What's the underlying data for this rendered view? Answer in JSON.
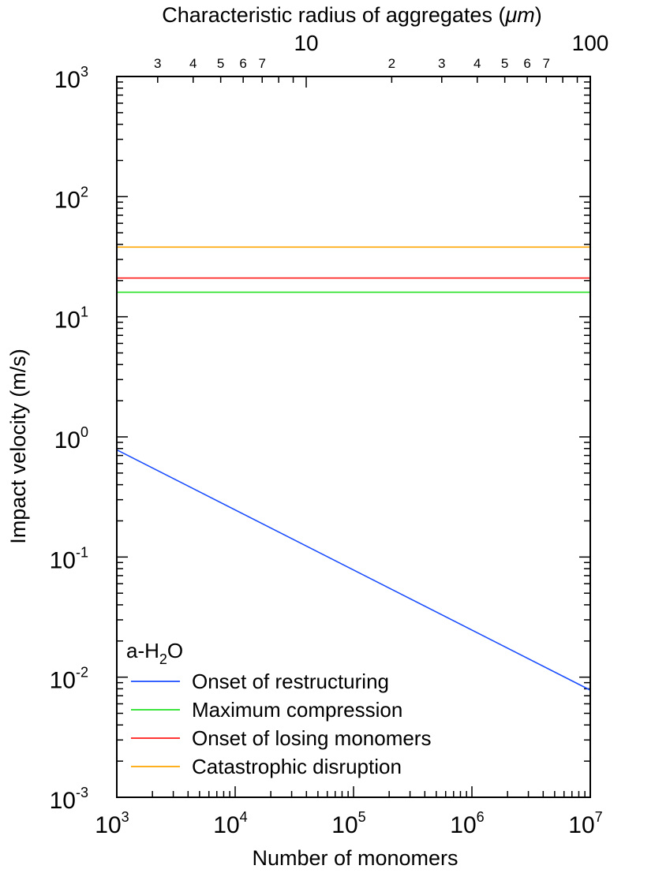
{
  "chart_data": {
    "type": "line",
    "xlabel": "Number of monomers",
    "ylabel": "Impact velocity (m/s)",
    "x2label": "Characteristic radius of aggregates (",
    "x2label_unit": "μm",
    "x2label_close": ")",
    "xscale": "log",
    "yscale": "log",
    "xlim": [
      1000,
      10000000
    ],
    "ylim": [
      0.001,
      1000
    ],
    "x_ticks": [
      {
        "value": 1000,
        "base": "10",
        "exp": "3"
      },
      {
        "value": 10000,
        "base": "10",
        "exp": "4"
      },
      {
        "value": 100000,
        "base": "10",
        "exp": "5"
      },
      {
        "value": 1000000,
        "base": "10",
        "exp": "6"
      },
      {
        "value": 10000000,
        "base": "10",
        "exp": "7"
      }
    ],
    "y_ticks": [
      {
        "value": 0.001,
        "base": "10",
        "exp": "-3"
      },
      {
        "value": 0.01,
        "base": "10",
        "exp": "-2"
      },
      {
        "value": 0.1,
        "base": "10",
        "exp": "-1"
      },
      {
        "value": 1,
        "base": "10",
        "exp": "0"
      },
      {
        "value": 10,
        "base": "10",
        "exp": "1"
      },
      {
        "value": 100,
        "base": "10",
        "exp": "2"
      },
      {
        "value": 1000,
        "base": "10",
        "exp": "3"
      }
    ],
    "x2_scale": "log",
    "x2_lim": [
      2.154,
      100
    ],
    "x2_major_ticks": [
      {
        "value": 10,
        "label": "10"
      },
      {
        "value": 100,
        "label": "100"
      }
    ],
    "x2_minor_ticks": [
      {
        "value": 3,
        "label": "3"
      },
      {
        "value": 4,
        "label": "4"
      },
      {
        "value": 5,
        "label": "5"
      },
      {
        "value": 6,
        "label": "6"
      },
      {
        "value": 7,
        "label": "7"
      },
      {
        "value": 20,
        "label": "2"
      },
      {
        "value": 30,
        "label": "3"
      },
      {
        "value": 40,
        "label": "4"
      },
      {
        "value": 50,
        "label": "5"
      },
      {
        "value": 60,
        "label": "6"
      },
      {
        "value": 70,
        "label": "7"
      }
    ],
    "legend": {
      "placement": "bottom-left",
      "title_prefix": "a-H",
      "title_sub": "2",
      "title_suffix": "O"
    },
    "series": [
      {
        "name": "Onset of restructuring",
        "color": "#1a4dff",
        "x": [
          1000,
          10000000
        ],
        "y": [
          0.78,
          0.0078
        ]
      },
      {
        "name": "Maximum compression",
        "color": "#22e022",
        "x": [
          1000,
          10000000
        ],
        "y": [
          16,
          16
        ]
      },
      {
        "name": "Onset of losing monomers",
        "color": "#ff1a1a",
        "x": [
          1000,
          10000000
        ],
        "y": [
          21,
          21
        ]
      },
      {
        "name": "Catastrophic disruption",
        "color": "#ffa500",
        "x": [
          1000,
          10000000
        ],
        "y": [
          38,
          38
        ]
      }
    ]
  }
}
